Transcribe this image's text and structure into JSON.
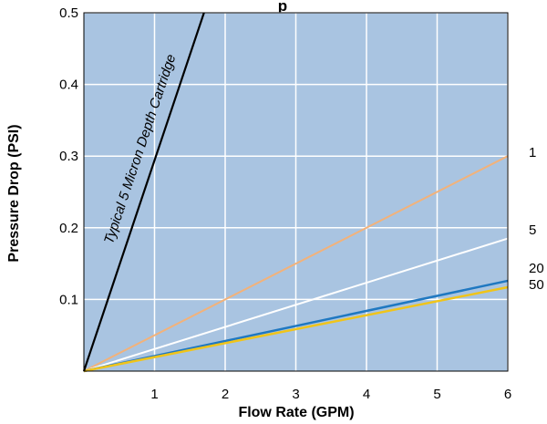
{
  "chart_data": {
    "type": "line",
    "title": "p",
    "xlabel": "Flow Rate (GPM)",
    "ylabel": "Pressure Drop (PSI)",
    "xlim": [
      0,
      6
    ],
    "ylim": [
      0,
      0.5
    ],
    "x_ticks": [
      "1",
      "2",
      "3",
      "4",
      "5",
      "6"
    ],
    "y_ticks": [
      "0.1",
      "0.2",
      "0.3",
      "0.4",
      "0.5"
    ],
    "grid": true,
    "background_color": "#a9c4e1",
    "series": [
      {
        "name": "1",
        "color": "#f2b27a",
        "x": [
          0,
          6
        ],
        "y": [
          0,
          0.3
        ]
      },
      {
        "name": "5",
        "color": "#ffffff",
        "x": [
          0,
          6
        ],
        "y": [
          0,
          0.185
        ]
      },
      {
        "name": "20",
        "color": "#1f78c1",
        "x": [
          0,
          6
        ],
        "y": [
          0,
          0.126
        ]
      },
      {
        "name": "50",
        "color": "#f0c419",
        "x": [
          0,
          6
        ],
        "y": [
          0,
          0.117
        ]
      }
    ],
    "annotation": {
      "text": "Typical 5 Micron Depth Cartridge",
      "color": "#000000",
      "x": [
        0,
        1.7
      ],
      "y": [
        0,
        0.5
      ]
    }
  }
}
